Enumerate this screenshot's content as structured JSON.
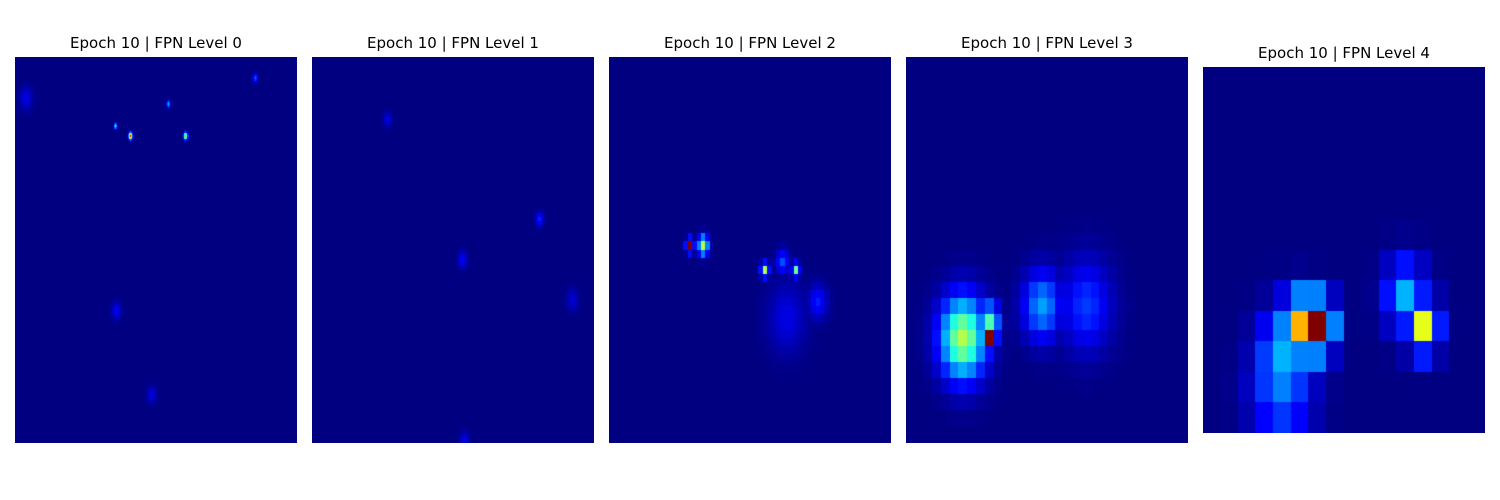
{
  "figure": {
    "background": "#ffffff",
    "colormap": "jet",
    "background_level": 0.0
  },
  "chart_data": [
    {
      "type": "heatmap",
      "title": "Epoch 10 | FPN Level 0",
      "grid": [
        256,
        192
      ],
      "hotspots": [
        {
          "row": 39,
          "col": 105,
          "value": 0.92,
          "spread": 1.2
        },
        {
          "row": 39,
          "col": 155,
          "value": 0.75,
          "spread": 1.2
        },
        {
          "row": 34,
          "col": 91,
          "value": 0.45,
          "spread": 1.0
        },
        {
          "row": 23,
          "col": 139,
          "value": 0.32,
          "spread": 1.2
        },
        {
          "row": 10,
          "col": 218,
          "value": 0.22,
          "spread": 1.5
        },
        {
          "row": 126,
          "col": 92,
          "value": 0.12,
          "spread": 3.0
        },
        {
          "row": 168,
          "col": 124,
          "value": 0.1,
          "spread": 3.0
        },
        {
          "row": 20,
          "col": 10,
          "value": 0.1,
          "spread": 4.0
        }
      ]
    },
    {
      "type": "heatmap",
      "title": "Epoch 10 | FPN Level 1",
      "grid": [
        128,
        96
      ],
      "hotspots": [
        {
          "row": 120,
          "col": 48,
          "value": 0.5,
          "spread": 0.6
        },
        {
          "row": 119,
          "col": 47,
          "value": 0.35,
          "spread": 0.8
        },
        {
          "row": 40,
          "col": 103,
          "value": 0.15,
          "spread": 1.2
        },
        {
          "row": 50,
          "col": 68,
          "value": 0.12,
          "spread": 1.5
        },
        {
          "row": 15,
          "col": 34,
          "value": 0.1,
          "spread": 1.2
        },
        {
          "row": 60,
          "col": 118,
          "value": 0.08,
          "spread": 2.0
        },
        {
          "row": 95,
          "col": 69,
          "value": 0.1,
          "spread": 1.5
        }
      ]
    },
    {
      "type": "heatmap",
      "title": "Epoch 10 | FPN Level 2",
      "grid": [
        64,
        48
      ],
      "hotspots": [
        {
          "row": 23,
          "col": 18,
          "value": 1.0,
          "spread": 0.5
        },
        {
          "row": 23,
          "col": 21,
          "value": 0.55,
          "spread": 0.8
        },
        {
          "row": 26,
          "col": 35,
          "value": 0.55,
          "spread": 0.6
        },
        {
          "row": 26,
          "col": 42,
          "value": 0.48,
          "spread": 0.6
        },
        {
          "row": 25,
          "col": 39,
          "value": 0.2,
          "spread": 1.0
        },
        {
          "row": 30,
          "col": 47,
          "value": 0.15,
          "spread": 1.5
        },
        {
          "row": 32,
          "col": 40,
          "value": 0.1,
          "spread": 3.0
        }
      ]
    },
    {
      "type": "heatmap",
      "title": "Epoch 10 | FPN Level 3",
      "grid": [
        32,
        24
      ],
      "hotspots": [
        {
          "row": 17,
          "col": 9,
          "value": 1.0,
          "spread": 0.5
        },
        {
          "row": 17,
          "col": 6,
          "value": 0.55,
          "spread": 1.8
        },
        {
          "row": 16,
          "col": 9,
          "value": 0.45,
          "spread": 0.8
        },
        {
          "row": 15,
          "col": 15,
          "value": 0.28,
          "spread": 1.5
        },
        {
          "row": 15,
          "col": 20,
          "value": 0.18,
          "spread": 2.0
        }
      ]
    },
    {
      "type": "heatmap",
      "title": "Epoch 10 | FPN Level 4",
      "grid": [
        16,
        12
      ],
      "hotspots": [
        {
          "row": 8,
          "col": 6,
          "value": 1.0,
          "spread": 0.6
        },
        {
          "row": 8,
          "col": 5,
          "value": 0.7,
          "spread": 0.7
        },
        {
          "row": 9,
          "col": 4,
          "value": 0.3,
          "spread": 1.0
        },
        {
          "row": 10,
          "col": 4,
          "value": 0.25,
          "spread": 1.2
        },
        {
          "row": 8,
          "col": 12,
          "value": 0.6,
          "spread": 0.6
        },
        {
          "row": 7,
          "col": 11,
          "value": 0.3,
          "spread": 0.8
        }
      ]
    }
  ]
}
